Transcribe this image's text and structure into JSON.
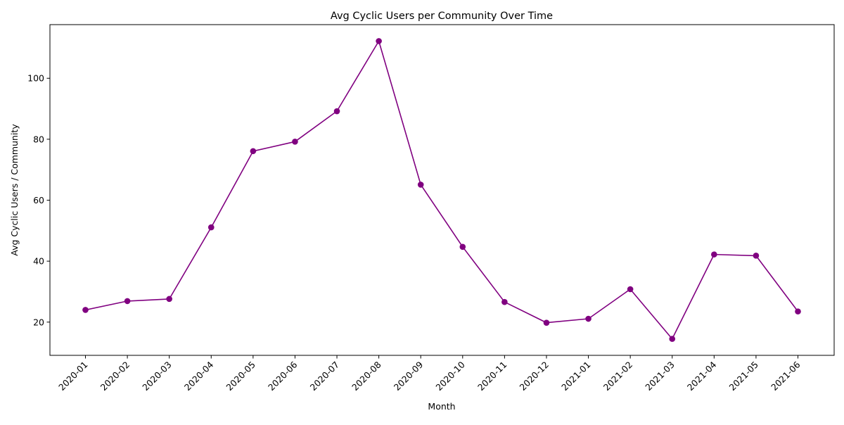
{
  "chart_data": {
    "type": "line",
    "title": "Avg Cyclic Users per Community Over Time",
    "xlabel": "Month",
    "ylabel": "Avg Cyclic Users / Community",
    "categories": [
      "2020-01",
      "2020-02",
      "2020-03",
      "2020-04",
      "2020-05",
      "2020-06",
      "2020-07",
      "2020-08",
      "2020-09",
      "2020-10",
      "2020-11",
      "2020-12",
      "2021-01",
      "2021-02",
      "2021-03",
      "2021-04",
      "2021-05",
      "2021-06"
    ],
    "series": [
      {
        "values": [
          24.0,
          26.9,
          27.6,
          51.1,
          76.1,
          79.2,
          89.2,
          112.2,
          65.1,
          44.7,
          26.6,
          19.8,
          21.1,
          30.8,
          14.5,
          42.2,
          41.8,
          23.5
        ],
        "color": "#800080",
        "marker": "circle"
      }
    ],
    "ylim": [
      9.1,
      117.6
    ],
    "yticks": [
      20,
      40,
      60,
      80,
      100
    ],
    "grid": false,
    "legend": "none",
    "xtick_rotation": 45
  }
}
